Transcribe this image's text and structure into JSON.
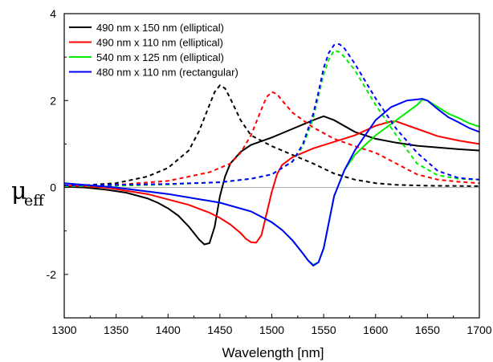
{
  "chart_data": {
    "type": "line",
    "xlabel": "Wavelength [nm]",
    "ylabel": {
      "symbol": "μ",
      "subscript": "eff"
    },
    "xlim": [
      1300,
      1700
    ],
    "ylim": [
      -3,
      4
    ],
    "xticks": [
      "1300",
      "1350",
      "1400",
      "1450",
      "1500",
      "1550",
      "1600",
      "1650",
      "1700"
    ],
    "yticks": [
      "-2",
      "0",
      "2",
      "4"
    ],
    "legend_position": "top-left",
    "zero_line": true,
    "series": [
      {
        "name": "490 nm x 150 nm (elliptical)",
        "color": "#000000",
        "solid": {
          "x": [
            1300,
            1320,
            1340,
            1360,
            1380,
            1390,
            1400,
            1410,
            1420,
            1425,
            1430,
            1435,
            1440,
            1445,
            1450,
            1455,
            1460,
            1470,
            1480,
            1500,
            1520,
            1540,
            1550,
            1560,
            1580,
            1600,
            1620,
            1640,
            1660,
            1680,
            1700
          ],
          "y": [
            0.02,
            0.0,
            -0.05,
            -0.12,
            -0.25,
            -0.35,
            -0.48,
            -0.65,
            -0.9,
            -1.05,
            -1.2,
            -1.31,
            -1.28,
            -0.9,
            -0.2,
            0.25,
            0.55,
            0.82,
            0.98,
            1.15,
            1.35,
            1.55,
            1.64,
            1.55,
            1.28,
            1.12,
            1.03,
            0.96,
            0.92,
            0.88,
            0.85
          ]
        },
        "dashed": {
          "x": [
            1300,
            1350,
            1380,
            1400,
            1420,
            1430,
            1440,
            1445,
            1450,
            1455,
            1460,
            1470,
            1480,
            1500,
            1520,
            1540,
            1560,
            1580,
            1600,
            1620,
            1650,
            1700
          ],
          "y": [
            0.02,
            0.1,
            0.25,
            0.45,
            0.85,
            1.3,
            1.9,
            2.2,
            2.35,
            2.28,
            2.05,
            1.55,
            1.2,
            0.95,
            0.75,
            0.55,
            0.32,
            0.18,
            0.1,
            0.06,
            0.04,
            0.03
          ]
        }
      },
      {
        "name": "490 nm x 110 nm (elliptical)",
        "color": "#ff0000",
        "solid": {
          "x": [
            1300,
            1340,
            1380,
            1420,
            1440,
            1450,
            1460,
            1470,
            1475,
            1480,
            1485,
            1490,
            1495,
            1500,
            1505,
            1510,
            1520,
            1530,
            1540,
            1560,
            1580,
            1600,
            1615,
            1620,
            1640,
            1660,
            1680,
            1700
          ],
          "y": [
            0.05,
            0.0,
            -0.15,
            -0.4,
            -0.58,
            -0.7,
            -0.85,
            -1.05,
            -1.18,
            -1.26,
            -1.27,
            -1.1,
            -0.6,
            -0.1,
            0.3,
            0.52,
            0.7,
            0.8,
            0.9,
            1.05,
            1.2,
            1.42,
            1.52,
            1.52,
            1.35,
            1.18,
            1.08,
            1.0
          ]
        },
        "dashed": {
          "x": [
            1300,
            1350,
            1400,
            1440,
            1460,
            1470,
            1480,
            1490,
            1495,
            1500,
            1505,
            1510,
            1520,
            1540,
            1560,
            1580,
            1600,
            1620,
            1640,
            1660,
            1680,
            1700
          ],
          "y": [
            0.03,
            0.06,
            0.15,
            0.35,
            0.55,
            0.8,
            1.2,
            1.8,
            2.08,
            2.2,
            2.15,
            2.0,
            1.72,
            1.38,
            1.12,
            0.95,
            0.8,
            0.55,
            0.3,
            0.18,
            0.13,
            0.1
          ]
        }
      },
      {
        "name": "540 nm x 125 nm (elliptical)",
        "color": "#00ee00",
        "solid": {
          "x": [
            1300,
            1350,
            1400,
            1450,
            1480,
            1500,
            1510,
            1520,
            1530,
            1535,
            1540,
            1545,
            1550,
            1555,
            1560,
            1570,
            1580,
            1590,
            1600,
            1620,
            1640,
            1645,
            1650,
            1660,
            1670,
            1680,
            1690,
            1700
          ],
          "y": [
            0.1,
            0.0,
            -0.15,
            -0.35,
            -0.55,
            -0.8,
            -0.98,
            -1.22,
            -1.52,
            -1.68,
            -1.78,
            -1.72,
            -1.4,
            -0.8,
            -0.2,
            0.4,
            0.75,
            0.98,
            1.2,
            1.55,
            1.9,
            2.02,
            2.0,
            1.85,
            1.7,
            1.6,
            1.48,
            1.4
          ]
        },
        "dashed": {
          "x": [
            1300,
            1350,
            1400,
            1450,
            1480,
            1500,
            1520,
            1530,
            1540,
            1545,
            1550,
            1555,
            1560,
            1565,
            1570,
            1580,
            1590,
            1600,
            1620,
            1640,
            1660,
            1680,
            1700
          ],
          "y": [
            0.03,
            0.04,
            0.07,
            0.12,
            0.2,
            0.3,
            0.6,
            0.95,
            1.6,
            2.1,
            2.6,
            2.95,
            3.15,
            3.12,
            3.0,
            2.7,
            2.3,
            1.9,
            1.2,
            0.55,
            0.28,
            0.2,
            0.18
          ]
        }
      },
      {
        "name": "480 nm x 110 nm (rectangular)",
        "color": "#0000ff",
        "solid": {
          "x": [
            1300,
            1350,
            1400,
            1450,
            1480,
            1500,
            1510,
            1520,
            1530,
            1535,
            1540,
            1545,
            1550,
            1555,
            1560,
            1570,
            1580,
            1590,
            1600,
            1615,
            1630,
            1645,
            1650,
            1660,
            1670,
            1680,
            1690,
            1700
          ],
          "y": [
            0.1,
            0.0,
            -0.15,
            -0.35,
            -0.55,
            -0.8,
            -0.98,
            -1.22,
            -1.52,
            -1.68,
            -1.8,
            -1.72,
            -1.4,
            -0.8,
            -0.2,
            0.4,
            0.85,
            1.2,
            1.55,
            1.85,
            2.0,
            2.04,
            2.0,
            1.8,
            1.62,
            1.5,
            1.37,
            1.28
          ]
        },
        "dashed": {
          "x": [
            1300,
            1350,
            1400,
            1450,
            1480,
            1500,
            1520,
            1530,
            1540,
            1545,
            1550,
            1555,
            1560,
            1565,
            1570,
            1580,
            1590,
            1600,
            1620,
            1640,
            1660,
            1680,
            1700
          ],
          "y": [
            0.05,
            0.06,
            0.08,
            0.12,
            0.2,
            0.3,
            0.6,
            1.0,
            1.7,
            2.2,
            2.75,
            3.1,
            3.28,
            3.3,
            3.2,
            2.85,
            2.45,
            2.05,
            1.35,
            0.8,
            0.38,
            0.22,
            0.18
          ]
        }
      }
    ]
  }
}
